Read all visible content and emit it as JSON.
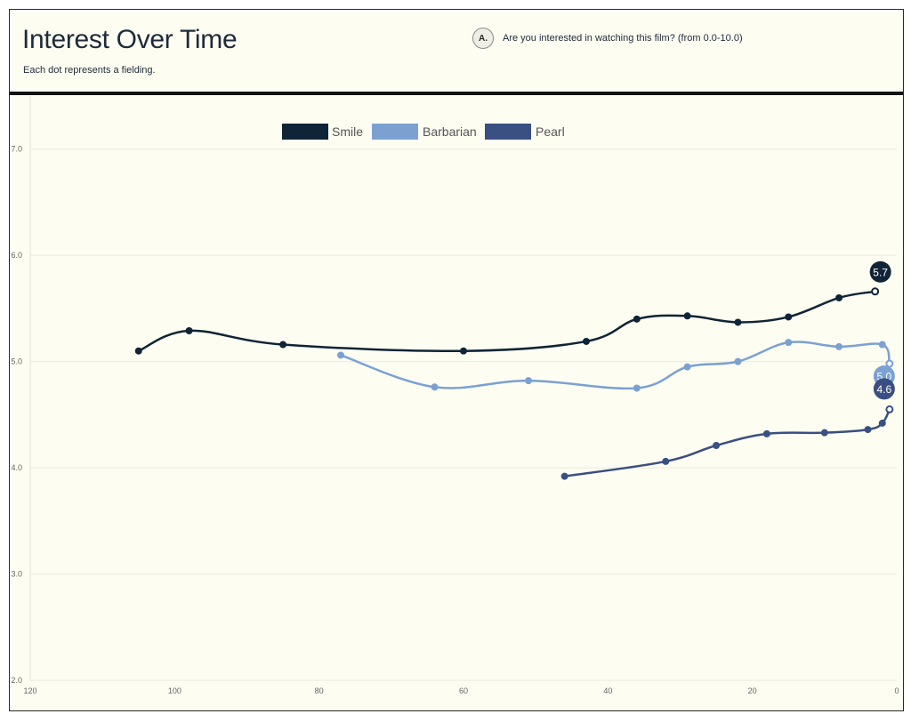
{
  "header": {
    "title": "Interest Over Time",
    "subtitle": "Each dot represents a fielding.",
    "question_badge": "A.",
    "question_text": "Are you interested in watching this film? (from 0.0-10.0)"
  },
  "chart_data": {
    "type": "line",
    "title": "Interest Over Time",
    "subtitle": "Each dot represents a fielding.",
    "xlabel": "",
    "ylabel": "",
    "xlim": [
      120,
      0
    ],
    "ylim": [
      2.0,
      7.5
    ],
    "x_ticks": [
      120,
      100,
      80,
      60,
      40,
      20,
      0
    ],
    "y_ticks": [
      2.0,
      3.0,
      4.0,
      5.0,
      6.0,
      7.0
    ],
    "x_tick_labels": [
      "120",
      "100",
      "80",
      "60",
      "40",
      "20",
      "0"
    ],
    "y_tick_labels": [
      "2.0",
      "3.0",
      "4.0",
      "5.0",
      "6.0",
      "7.0"
    ],
    "grid": true,
    "legend_position": "top-center",
    "series": [
      {
        "name": "Smile",
        "color": "#0f2436",
        "end_label": "5.7",
        "points": [
          [
            105,
            5.1
          ],
          [
            98,
            5.29
          ],
          [
            85,
            5.16
          ],
          [
            60,
            5.1
          ],
          [
            43,
            5.19
          ],
          [
            36,
            5.4
          ],
          [
            29,
            5.43
          ],
          [
            22,
            5.37
          ],
          [
            15,
            5.42
          ],
          [
            8,
            5.6
          ],
          [
            3,
            5.66
          ]
        ]
      },
      {
        "name": "Barbarian",
        "color": "#7aa1d2",
        "end_label": "5.0",
        "points": [
          [
            77,
            5.06
          ],
          [
            64,
            4.76
          ],
          [
            51,
            4.82
          ],
          [
            36,
            4.75
          ],
          [
            29,
            4.95
          ],
          [
            22,
            5.0
          ],
          [
            15,
            5.18
          ],
          [
            8,
            5.14
          ],
          [
            2,
            5.16
          ],
          [
            1,
            4.98
          ]
        ]
      },
      {
        "name": "Pearl",
        "color": "#3a4f82",
        "end_label": "4.6",
        "points": [
          [
            46,
            3.92
          ],
          [
            32,
            4.06
          ],
          [
            25,
            4.21
          ],
          [
            18,
            4.32
          ],
          [
            10,
            4.33
          ],
          [
            4,
            4.36
          ],
          [
            2,
            4.42
          ],
          [
            1,
            4.55
          ]
        ]
      }
    ]
  }
}
